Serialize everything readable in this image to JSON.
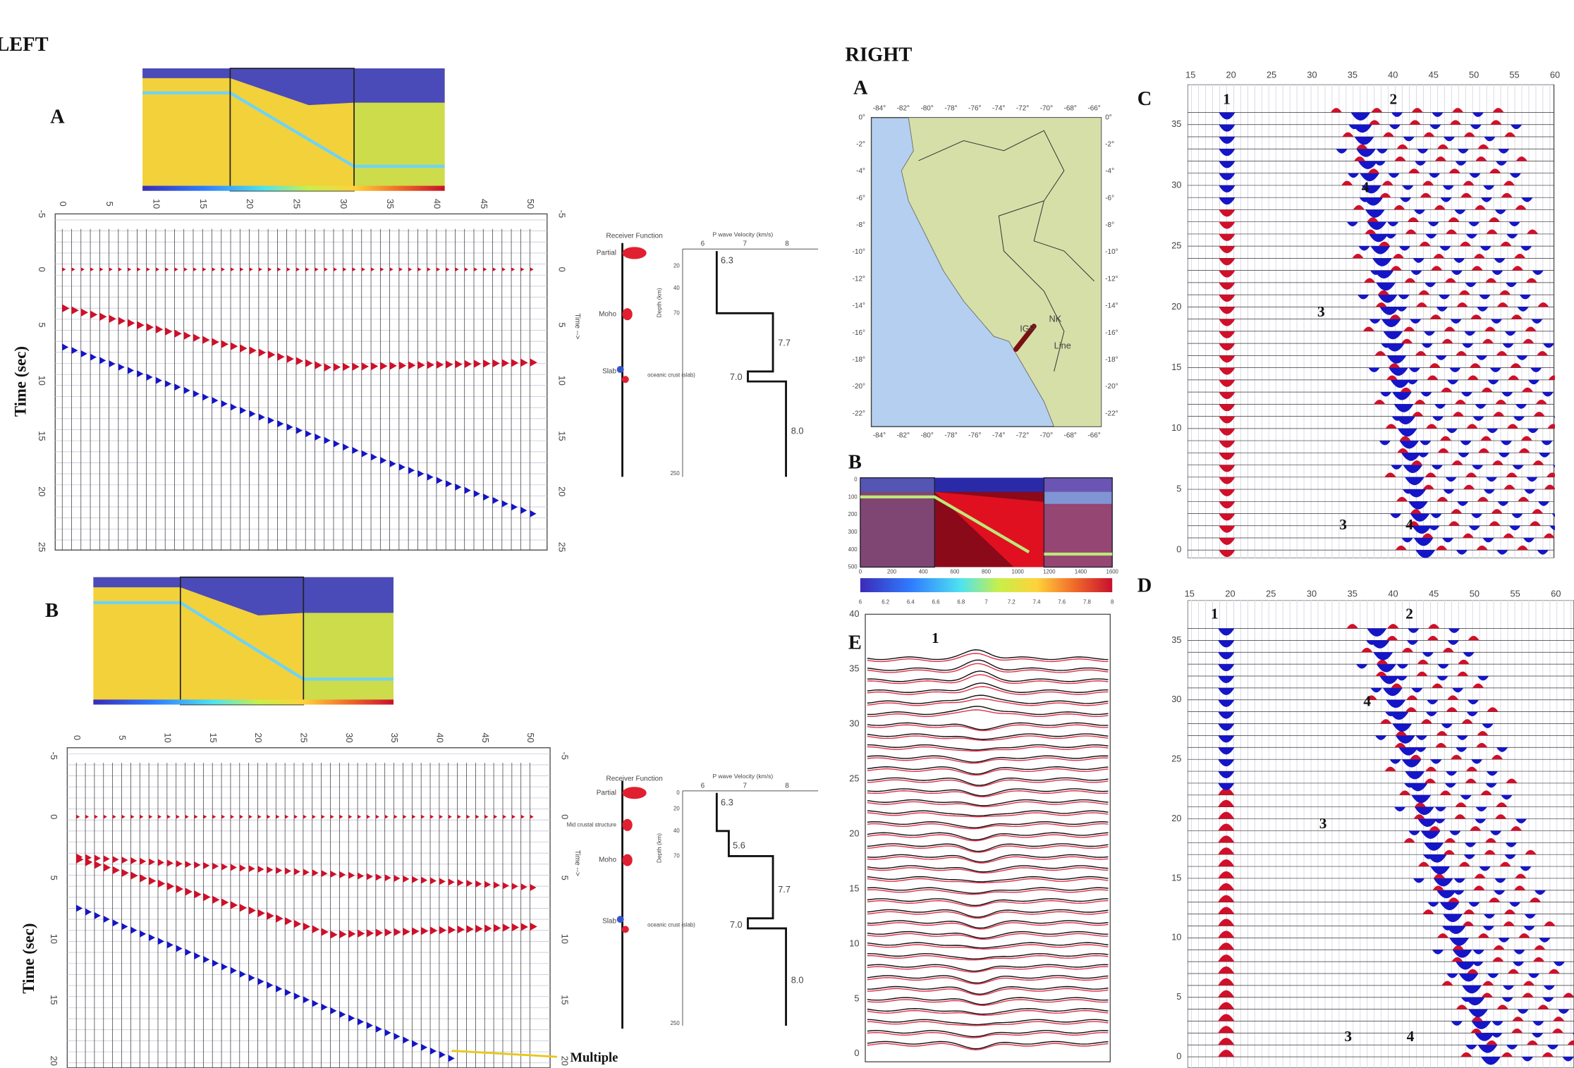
{
  "left": {
    "label": "LEFT",
    "panels": [
      {
        "letter": "A",
        "y_label": "Time (sec)",
        "x_ticks": [
          0,
          5,
          10,
          15,
          20,
          25,
          30,
          35,
          40,
          45,
          50
        ],
        "y_ticks": [
          -5,
          0,
          5,
          10,
          15,
          20,
          25
        ],
        "time_label": "Time -->",
        "rf_title": "Receiver Function",
        "rf_phases": [
          "Partial",
          "Moho",
          "Slab"
        ],
        "vel_title": "P wave Velocity (km/s)",
        "vel_ticks": [
          6,
          7,
          8
        ],
        "depth_label": "Depth (km)",
        "depth_ticks": [
          20,
          40,
          70,
          250
        ],
        "vel_values": [
          "6.3",
          "7.7",
          "7.0",
          "8.0"
        ],
        "slab_note": "oceanic crust (slab)"
      },
      {
        "letter": "B",
        "y_label": "Time (sec)",
        "x_ticks": [
          0,
          5,
          10,
          15,
          20,
          25,
          30,
          35,
          40,
          45,
          50
        ],
        "y_ticks": [
          -5,
          0,
          5,
          10,
          15,
          20
        ],
        "time_label": "Time -->",
        "rf_title": "Receiver Function",
        "rf_phases": [
          "Partial",
          "Mid crustal structure",
          "Moho",
          "Slab"
        ],
        "vel_title": "P wave Velocity (km/s)",
        "vel_ticks": [
          6,
          7,
          8
        ],
        "depth_label": "Depth (km)",
        "depth_ticks": [
          0,
          20,
          40,
          70,
          250
        ],
        "vel_values": [
          "6.3",
          "5.6",
          "7.7",
          "7.0",
          "8.0"
        ],
        "slab_note": "oceanic crust (slab)",
        "annotation": "Multiple"
      }
    ]
  },
  "right": {
    "label": "RIGHT",
    "map": {
      "letter": "A",
      "lon_ticks": [
        "-84°",
        "-82°",
        "-80°",
        "-78°",
        "-76°",
        "-74°",
        "-72°",
        "-70°",
        "-68°",
        "-66°"
      ],
      "lat_ticks": [
        "0°",
        "-2°",
        "-4°",
        "-6°",
        "-8°",
        "-10°",
        "-12°",
        "-14°",
        "-16°",
        "-18°",
        "-20°",
        "-22°"
      ],
      "places": [
        "IGP",
        "NK",
        "Line"
      ]
    },
    "model": {
      "letter": "B",
      "depth_ticks": [
        0,
        100,
        200,
        300,
        400,
        500
      ],
      "dist_ticks": [
        0,
        200,
        400,
        600,
        800,
        1000,
        1200,
        1400,
        1600
      ],
      "color_ticks": [
        6,
        6.2,
        6.4,
        6.6,
        6.8,
        7,
        7.2,
        7.4,
        7.6,
        7.8,
        8
      ]
    },
    "sections": [
      {
        "letter": "C",
        "x_ticks": [
          15,
          20,
          25,
          30,
          35,
          40,
          45,
          50,
          55,
          60
        ],
        "y_ticks": [
          0,
          5,
          10,
          15,
          20,
          25,
          30,
          35
        ],
        "markers": [
          "1",
          "2",
          "4",
          "3",
          "3",
          "4"
        ]
      },
      {
        "letter": "D",
        "x_ticks": [
          15,
          20,
          25,
          30,
          35,
          40,
          45,
          50,
          55,
          60
        ],
        "y_ticks": [
          0,
          5,
          10,
          15,
          20,
          25,
          30,
          35
        ],
        "markers": [
          "1",
          "2",
          "4",
          "3",
          "3",
          "4"
        ]
      }
    ],
    "stack": {
      "letter": "E",
      "y_ticks": [
        0,
        5,
        10,
        15,
        20,
        25,
        30,
        35,
        40
      ],
      "marker": "1"
    }
  }
}
